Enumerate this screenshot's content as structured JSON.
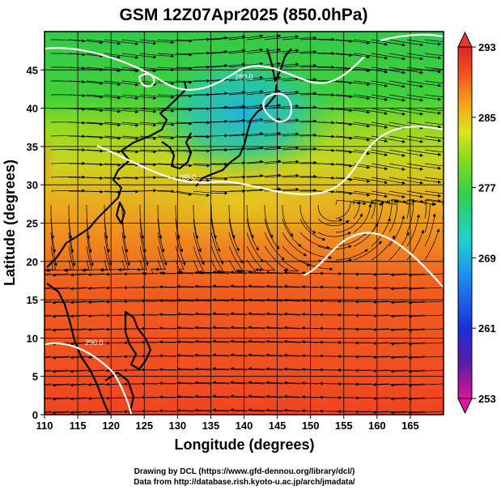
{
  "title": "GSM 12Z07Apr2025 (850.0hPa)",
  "x_axis": {
    "label": "Longitude (degrees)",
    "range": [
      110,
      170
    ],
    "ticks": [
      "110",
      "115",
      "120",
      "125",
      "130",
      "135",
      "140",
      "145",
      "150",
      "155",
      "160",
      "165"
    ],
    "grid_step": 5
  },
  "y_axis": {
    "label": "Latitude  (degrees)",
    "range": [
      0,
      50
    ],
    "ticks": [
      "0",
      "5",
      "10",
      "15",
      "20",
      "25",
      "30",
      "35",
      "40",
      "45"
    ],
    "grid_step": 5
  },
  "colorbar": {
    "min": 253,
    "max": 293,
    "tick_labels": [
      "293",
      "285",
      "277",
      "269",
      "261",
      "253"
    ],
    "colors": [
      "#d8179b",
      "#5b1ca8",
      "#1b2fd9",
      "#1e8ef0",
      "#20d1cf",
      "#2fd14d",
      "#86dc1d",
      "#dfe31d",
      "#f5a21b",
      "#f2561d",
      "#e02427"
    ]
  },
  "contour_labels": [
    "290.0",
    "285.0",
    "280.0"
  ],
  "credits": {
    "line1": "Drawing by DCL (https://www.gfd-dennou.org/library/dcl/)",
    "line2": "Data from http://database.rish.kyoto-u.ac.jp/arch/jmadata/"
  }
}
